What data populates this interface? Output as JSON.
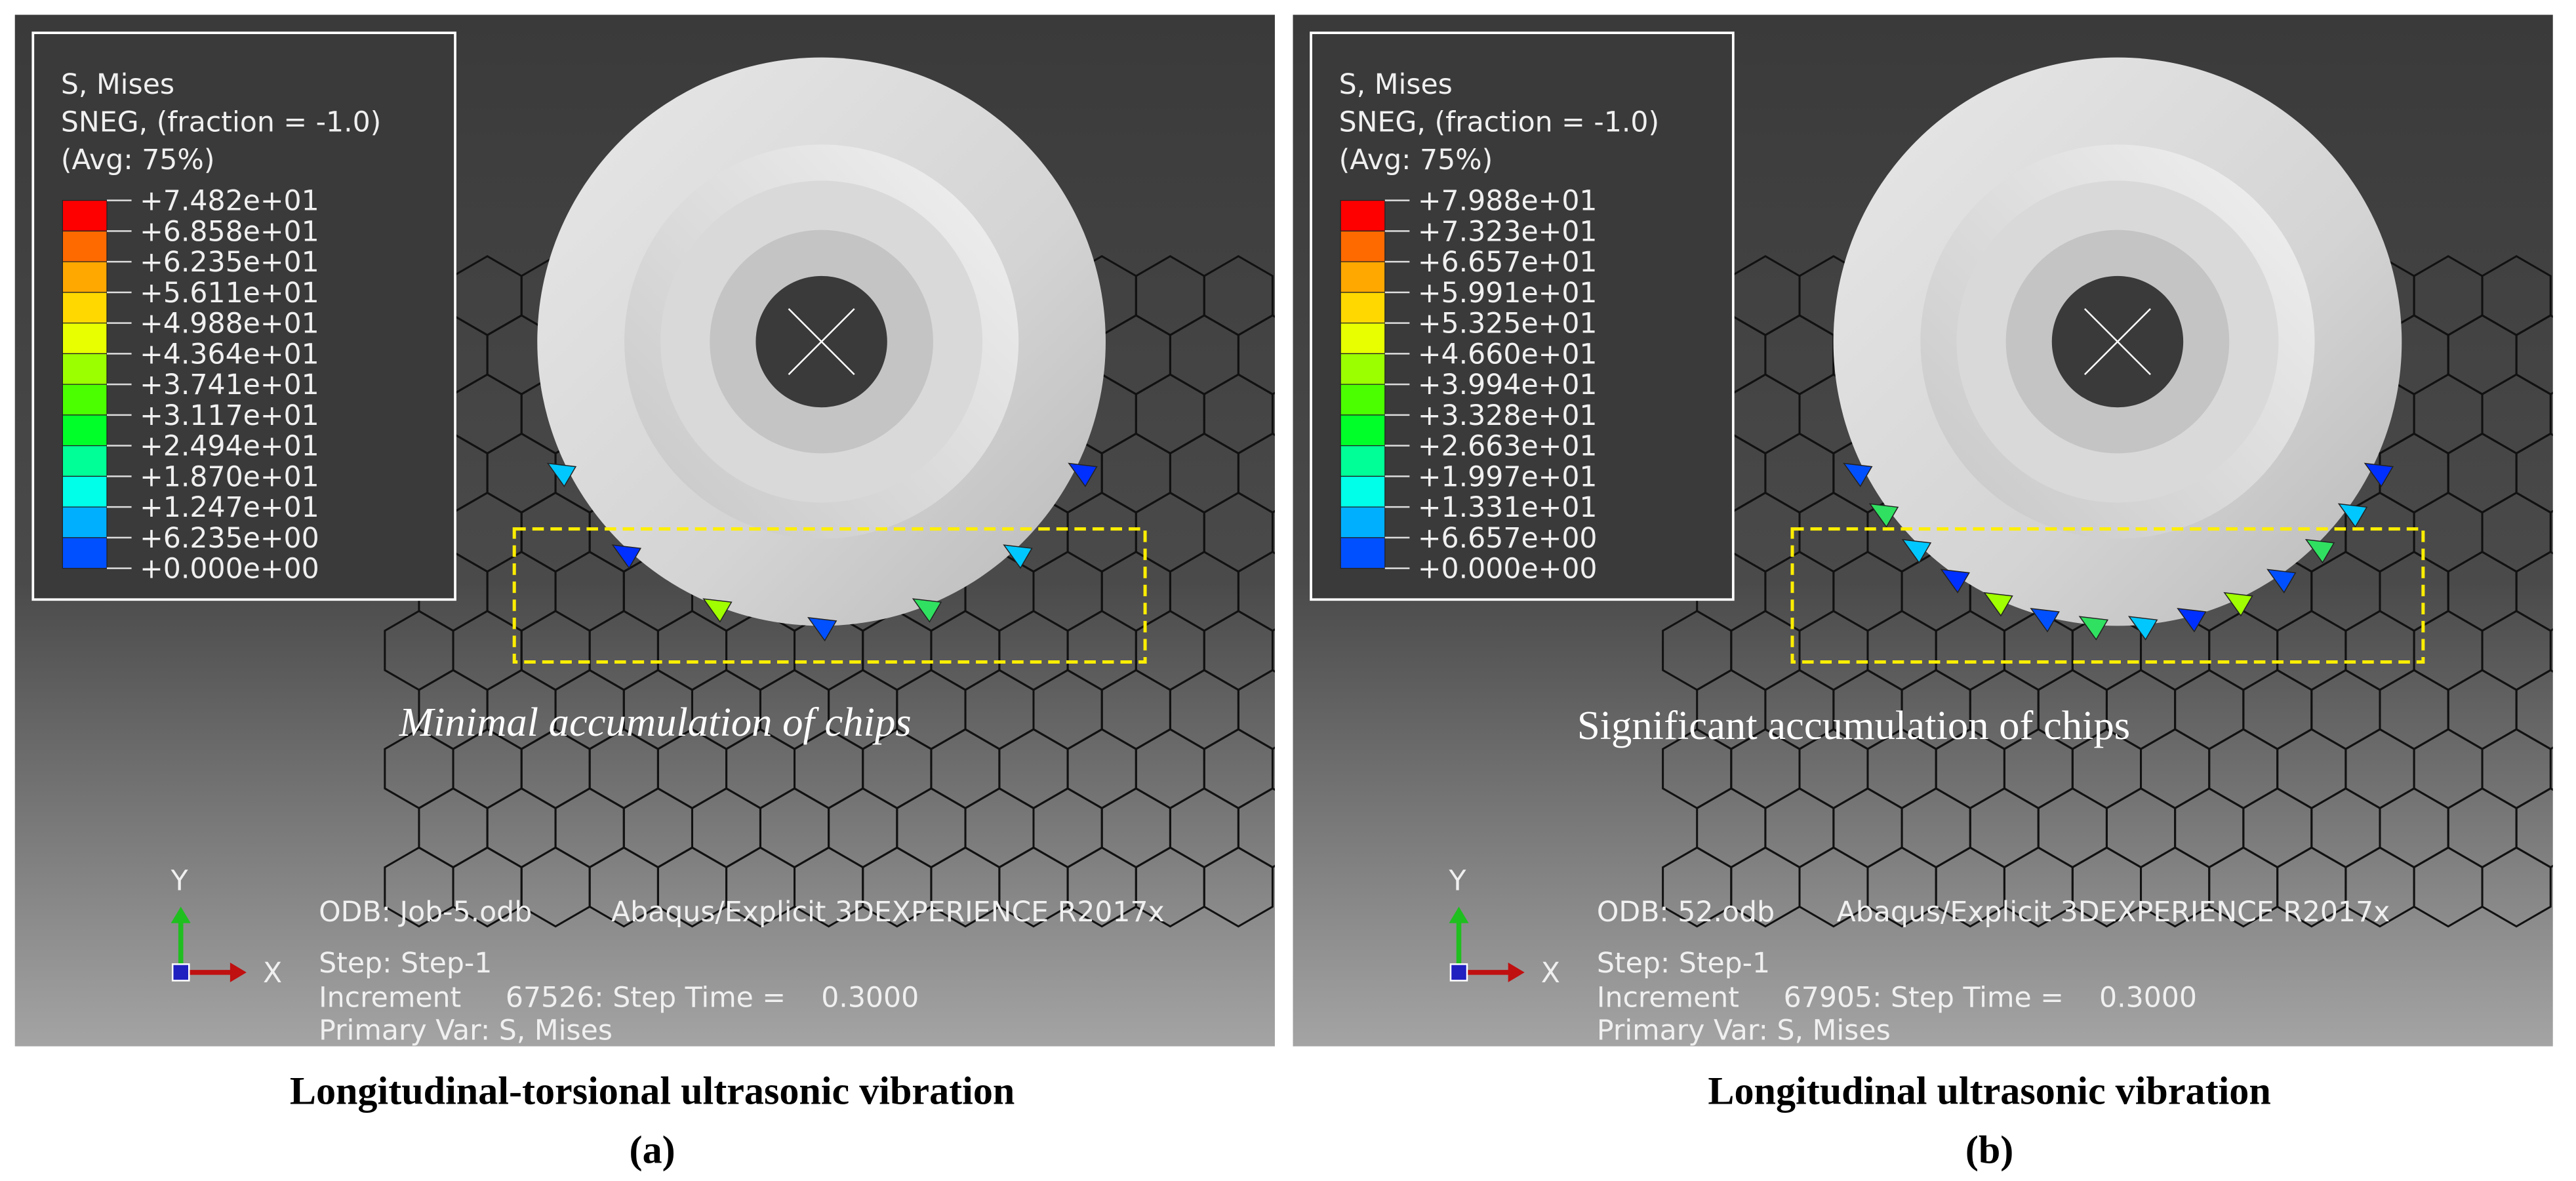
{
  "legend_colors": [
    "#ff0000",
    "#ff6a00",
    "#ffa800",
    "#ffd800",
    "#e8ff00",
    "#9cff00",
    "#4cff00",
    "#00ff28",
    "#00ff96",
    "#00ffe8",
    "#00b0ff",
    "#0050ff",
    "#0000ff"
  ],
  "panels": [
    {
      "legend_title": [
        "S, Mises",
        "SNEG, (fraction = -1.0)",
        "(Avg: 75%)"
      ],
      "legend_values": [
        "+7.482e+01",
        "+6.858e+01",
        "+6.235e+01",
        "+5.611e+01",
        "+4.988e+01",
        "+4.364e+01",
        "+3.741e+01",
        "+3.117e+01",
        "+2.494e+01",
        "+1.870e+01",
        "+1.247e+01",
        "+6.235e+00",
        "+0.000e+00"
      ],
      "annotation": "Minimal accumulation of chips",
      "axis_y": "Y",
      "axis_x": "X",
      "odb": "ODB: Job-5.odb",
      "software": "Abaqus/Explicit 3DEXPERIENCE R2017x",
      "step": "Step: Step-1",
      "increment": "Increment     67526: Step Time =    0.3000",
      "primary_var": "Primary Var: S, Mises",
      "caption": "Longitudinal-torsional ultrasonic vibration",
      "label": "(a)"
    },
    {
      "legend_title": [
        "S, Mises",
        "SNEG, (fraction = -1.0)",
        "(Avg: 75%)"
      ],
      "legend_values": [
        "+7.988e+01",
        "+7.323e+01",
        "+6.657e+01",
        "+5.991e+01",
        "+5.325e+01",
        "+4.660e+01",
        "+3.994e+01",
        "+3.328e+01",
        "+2.663e+01",
        "+1.997e+01",
        "+1.331e+01",
        "+6.657e+00",
        "+0.000e+00"
      ],
      "annotation": "Significant accumulation of chips",
      "axis_y": "Y",
      "axis_x": "X",
      "odb": "ODB: 52.odb",
      "software": "Abaqus/Explicit 3DEXPERIENCE R2017x",
      "step": "Step: Step-1",
      "increment": "Increment     67905: Step Time =    0.3000",
      "primary_var": "Primary Var: S, Mises",
      "caption": "Longitudinal ultrasonic vibration",
      "label": "(b)"
    }
  ]
}
